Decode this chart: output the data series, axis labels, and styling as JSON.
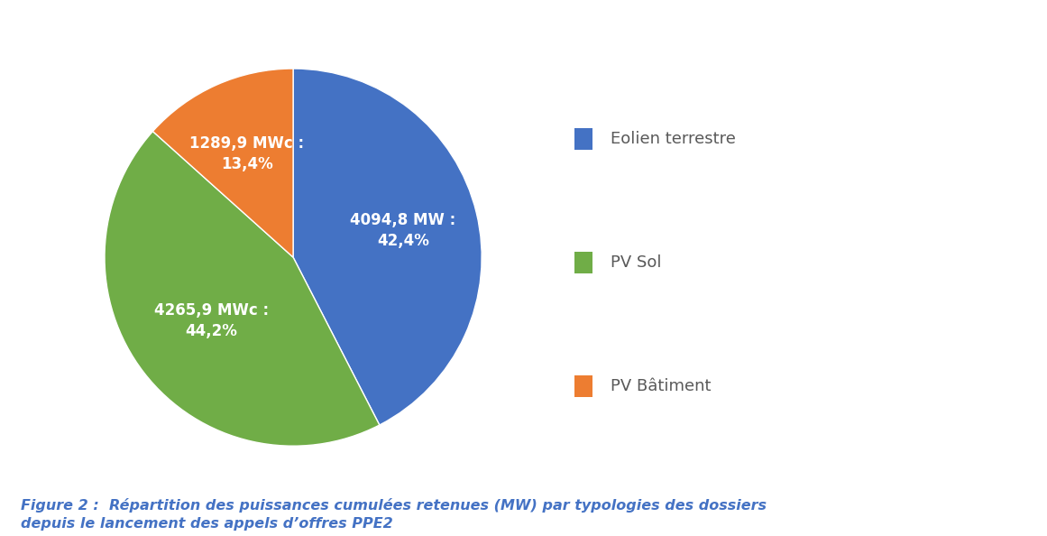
{
  "labels": [
    "Eolien terrestre",
    "PV Sol",
    "PV Bâtiment"
  ],
  "values": [
    4094.8,
    4265.9,
    1289.9
  ],
  "percentages": [
    "42,4%",
    "44,2%",
    "13,4%"
  ],
  "value_labels": [
    "4094,8 MW :",
    "4265,9 MWc :",
    "1289,9 MWc :"
  ],
  "colors": [
    "#4472C4",
    "#70AD47",
    "#ED7D31"
  ],
  "legend_labels": [
    "Eolien terrestre",
    "PV Sol",
    "PV Bâtiment"
  ],
  "caption_line1": "Figure 2 :  Répartition des puissances cumulées retenues (MW) par typologies des dossiers",
  "caption_line2": "depuis le lancement des appels d’offres PPE2",
  "background_color": "#FFFFFF",
  "label_fontsize": 12,
  "legend_fontsize": 13,
  "caption_fontsize": 11.5,
  "label_radii": [
    0.6,
    0.55,
    0.6
  ]
}
